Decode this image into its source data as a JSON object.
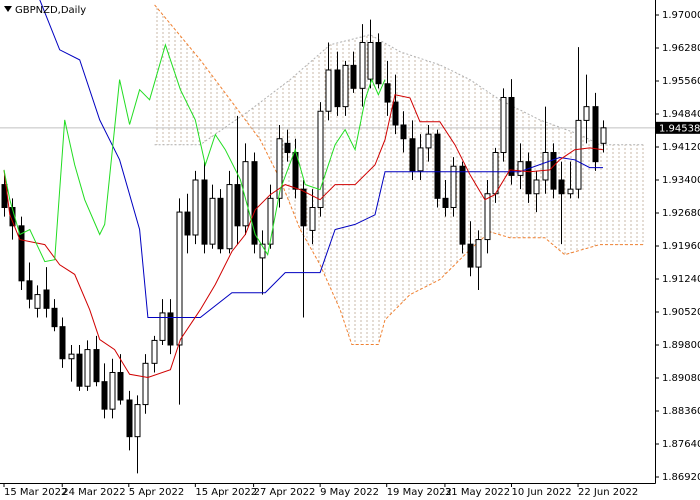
{
  "chart_data": {
    "type": "candlestick",
    "title": "GBPNZD,Daily",
    "open": [
      1.933,
      1.928,
      1.924,
      1.912,
      1.906,
      1.91,
      1.906,
      1.902,
      1.895,
      1.896,
      1.889,
      1.897,
      1.89,
      1.884,
      1.892,
      1.886,
      1.878,
      1.885,
      1.894,
      1.899,
      1.905,
      1.898,
      1.927,
      1.922,
      1.934,
      1.92,
      1.93,
      1.919,
      1.933,
      1.924,
      1.938,
      1.917,
      1.92,
      1.93,
      1.942,
      1.94,
      1.932,
      1.923,
      1.928,
      1.949,
      1.958,
      1.95,
      1.959,
      1.954,
      1.956,
      1.964,
      1.955,
      1.951,
      1.946,
      1.943,
      1.936,
      1.941,
      1.944,
      1.93,
      1.928,
      1.937,
      1.92,
      1.915,
      1.921,
      1.931,
      1.94,
      1.952,
      1.935,
      1.938,
      1.931,
      1.934,
      1.94,
      1.934,
      1.931,
      1.932,
      1.947,
      1.95,
      1.942
    ],
    "high": [
      1.935,
      1.93,
      1.926,
      1.916,
      1.911,
      1.915,
      1.908,
      1.904,
      1.898,
      1.898,
      1.899,
      1.9,
      1.894,
      1.895,
      1.896,
      1.888,
      1.887,
      1.896,
      1.9,
      1.908,
      1.908,
      1.93,
      1.931,
      1.936,
      1.938,
      1.933,
      1.932,
      1.936,
      1.948,
      1.942,
      1.94,
      1.923,
      1.933,
      1.946,
      1.945,
      1.943,
      1.934,
      1.932,
      1.951,
      1.964,
      1.962,
      1.96,
      1.962,
      1.968,
      1.969,
      1.966,
      1.96,
      1.957,
      1.949,
      1.947,
      1.944,
      1.946,
      1.945,
      1.934,
      1.939,
      1.938,
      1.925,
      1.923,
      1.934,
      1.941,
      1.954,
      1.956,
      1.942,
      1.94,
      1.936,
      1.95,
      1.942,
      1.938,
      1.938,
      1.963,
      1.957,
      1.953,
      1.947
    ],
    "low": [
      1.926,
      1.921,
      1.91,
      1.906,
      1.904,
      1.904,
      1.901,
      1.893,
      1.89,
      1.888,
      1.888,
      1.889,
      1.882,
      1.882,
      1.885,
      1.875,
      1.87,
      1.883,
      1.892,
      1.898,
      1.896,
      1.885,
      1.918,
      1.92,
      1.918,
      1.919,
      1.918,
      1.918,
      1.92,
      1.922,
      1.918,
      1.909,
      1.919,
      1.928,
      1.938,
      1.93,
      1.904,
      1.92,
      1.926,
      1.947,
      1.948,
      1.948,
      1.953,
      1.95,
      1.954,
      1.954,
      1.948,
      1.944,
      1.94,
      1.934,
      1.934,
      1.938,
      1.928,
      1.926,
      1.926,
      1.918,
      1.913,
      1.91,
      1.918,
      1.929,
      1.938,
      1.933,
      1.932,
      1.929,
      1.927,
      1.931,
      1.93,
      1.92,
      1.93,
      1.93,
      1.942,
      1.936,
      1.94
    ],
    "close": [
      1.928,
      1.924,
      1.912,
      1.908,
      1.909,
      1.906,
      1.902,
      1.895,
      1.896,
      1.889,
      1.897,
      1.89,
      1.884,
      1.892,
      1.886,
      1.878,
      1.885,
      1.894,
      1.899,
      1.905,
      1.898,
      1.927,
      1.922,
      1.934,
      1.92,
      1.93,
      1.919,
      1.933,
      1.924,
      1.938,
      1.92,
      1.92,
      1.93,
      1.943,
      1.94,
      1.932,
      1.924,
      1.928,
      1.949,
      1.958,
      1.95,
      1.959,
      1.954,
      1.964,
      1.964,
      1.955,
      1.951,
      1.946,
      1.943,
      1.936,
      1.941,
      1.944,
      1.93,
      1.928,
      1.937,
      1.92,
      1.915,
      1.921,
      1.931,
      1.94,
      1.952,
      1.935,
      1.938,
      1.931,
      1.934,
      1.94,
      1.932,
      1.931,
      1.932,
      1.947,
      1.95,
      1.938,
      1.94538
    ],
    "bull_color": "#ffffff",
    "bear_color": "#000000",
    "last_price": 1.94538,
    "lines": [
      {
        "color": "#0000c0",
        "x": [
          4.3,
          6.7,
          9.1,
          11.5,
          13.9,
          16.3,
          17.3,
          23.6,
          27.4,
          31.4,
          33.8,
          38,
          39.8,
          42.2,
          44.6,
          45.8,
          62,
          66.8,
          68.6,
          70.4,
          72
        ],
        "values": [
          1.9733,
          1.9624,
          1.9602,
          1.9471,
          1.9384,
          1.9232,
          1.904,
          1.904,
          1.9094,
          1.9094,
          1.9138,
          1.9138,
          1.9232,
          1.9243,
          1.9264,
          1.9358,
          1.9358,
          1.9389,
          1.9384,
          1.9367,
          1.9367
        ]
      },
      {
        "color": "#d00000",
        "x": [
          0,
          0.7,
          1.9,
          4.9,
          6.7,
          8.5,
          10.3,
          11.5,
          13.3,
          15.1,
          17.3,
          20,
          21.2,
          23.6,
          25.4,
          27.4,
          29,
          30.2,
          32,
          33.8,
          35.6,
          38,
          39.8,
          42.2,
          44.6,
          45.8,
          47,
          48.8,
          50,
          52.4,
          54.2,
          56,
          57.8,
          59,
          60.8,
          63.2,
          65.6,
          66.8,
          68.6,
          70.4,
          72
        ],
        "values": [
          1.9362,
          1.9264,
          1.921,
          1.9199,
          1.9155,
          1.9134,
          1.9057,
          1.8992,
          1.897,
          1.8916,
          1.8909,
          1.8926,
          1.8992,
          1.9057,
          1.9112,
          1.9184,
          1.9221,
          1.9275,
          1.9308,
          1.933,
          1.9319,
          1.9297,
          1.933,
          1.933,
          1.9373,
          1.9428,
          1.9526,
          1.9519,
          1.9467,
          1.9467,
          1.9417,
          1.9352,
          1.9297,
          1.9308,
          1.9362,
          1.9358,
          1.9362,
          1.9384,
          1.9406,
          1.941,
          1.9406
        ]
      },
      {
        "color": "#22dd22",
        "x": [
          0,
          0.7,
          1.9,
          3.1,
          4.9,
          6.1,
          7.3,
          8.5,
          9.7,
          11.5,
          12.1,
          13.9,
          15.1,
          16.3,
          17.5,
          19.4,
          21.2,
          23,
          24.2,
          25.4,
          26.6,
          28.4,
          30.2,
          31.7,
          33.2,
          35,
          36.2,
          38,
          39.8,
          41,
          42.2,
          43.4,
          44.2,
          45,
          45.8
        ],
        "values": [
          1.9362,
          1.9297,
          1.9221,
          1.9232,
          1.9162,
          1.9166,
          1.9471,
          1.9373,
          1.9297,
          1.9221,
          1.9243,
          1.9559,
          1.9461,
          1.9537,
          1.9515,
          1.9635,
          1.9537,
          1.9471,
          1.9373,
          1.9439,
          1.9406,
          1.9341,
          1.9221,
          1.9177,
          1.9319,
          1.9406,
          1.933,
          1.9319,
          1.9417,
          1.945,
          1.9406,
          1.9515,
          1.9559,
          1.9526,
          1.9559
        ]
      }
    ],
    "cloud": {
      "span_a": {
        "color": "#f08030",
        "x": [
          18.1,
          23.6,
          27.2,
          30.8,
          33.2,
          35.6,
          38,
          40.4,
          41.8,
          45,
          45.8,
          48.8,
          52.4,
          56,
          58.4,
          60.8,
          65,
          67.4,
          71.6,
          77
        ],
        "values": [
          1.9722,
          1.9602,
          1.9515,
          1.9428,
          1.9341,
          1.9232,
          1.9155,
          1.9057,
          1.8981,
          1.8981,
          1.9035,
          1.909,
          1.9123,
          1.9188,
          1.9227,
          1.9214,
          1.9214,
          1.9177,
          1.9199,
          1.9199
        ]
      },
      "span_b": {
        "color": "#b0b0b0",
        "x": [
          18.1,
          23.6,
          29.6,
          34.4,
          39.2,
          44,
          47.6,
          52.4,
          56,
          59.6,
          64.4,
          69.2,
          71.6,
          77
        ],
        "values": [
          1.9417,
          1.9417,
          1.9493,
          1.9559,
          1.9635,
          1.9657,
          1.962,
          1.9591,
          1.9559,
          1.9515,
          1.9471,
          1.9439,
          1.9417,
          1.9417
        ]
      }
    },
    "xlim": [
      -0.48,
      78.25
    ],
    "ylim": [
      1.86789,
      1.97327
    ],
    "yticks": [
      {
        "value": 1.97,
        "label": "1.97000"
      },
      {
        "value": 1.9628,
        "label": "1.96280"
      },
      {
        "value": 1.9556,
        "label": "1.95560"
      },
      {
        "value": 1.9484,
        "label": "1.94840"
      },
      {
        "value": 1.9412,
        "label": "1.94120"
      },
      {
        "value": 1.934,
        "label": "1.93400"
      },
      {
        "value": 1.9268,
        "label": "1.92680"
      },
      {
        "value": 1.9196,
        "label": "1.91960"
      },
      {
        "value": 1.9124,
        "label": "1.91240"
      },
      {
        "value": 1.9052,
        "label": "1.90520"
      },
      {
        "value": 1.898,
        "label": "1.89800"
      },
      {
        "value": 1.8908,
        "label": "1.89080"
      },
      {
        "value": 1.8836,
        "label": "1.88360"
      },
      {
        "value": 1.8764,
        "label": "1.87640"
      },
      {
        "value": 1.8692,
        "label": "1.86920"
      }
    ],
    "xticks": [
      {
        "value": 0,
        "label": "15 Mar 2022"
      },
      {
        "value": 7,
        "label": "24 Mar 2022"
      },
      {
        "value": 15,
        "label": "5 Apr 2022"
      },
      {
        "value": 23,
        "label": "15 Apr 2022"
      },
      {
        "value": 30,
        "label": "27 Apr 2022"
      },
      {
        "value": 38,
        "label": "9 May 2022"
      },
      {
        "value": 46,
        "label": "19 May 2022"
      },
      {
        "value": 53,
        "label": "31 May 2022"
      },
      {
        "value": 61,
        "label": "10 Jun 2022"
      },
      {
        "value": 69,
        "label": "22 Jun 2022"
      }
    ]
  }
}
